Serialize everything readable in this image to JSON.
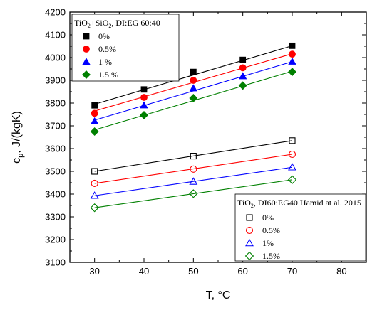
{
  "chart_data": {
    "type": "scatter",
    "xlabel": {
      "main": "T, ",
      "unit": "°C"
    },
    "ylabel": {
      "c": "c",
      "sub": "p",
      "rest": ", J/(kgK)"
    },
    "xlim": [
      25,
      85
    ],
    "ylim": [
      3100,
      4200
    ],
    "x_ticks": [
      "30",
      "40",
      "50",
      "60",
      "70",
      "80"
    ],
    "y_ticks": [
      "3100",
      "3200",
      "3300",
      "3400",
      "3500",
      "3600",
      "3700",
      "3800",
      "3900",
      "4000",
      "4100",
      "4200"
    ],
    "legends": [
      {
        "position": "top-left",
        "title": {
          "a": "TiO",
          "sub": "2",
          "b": "+SiO",
          "sub2": "2",
          "c": ", DI:EG 60:40"
        },
        "entries": [
          "0%",
          "0.5%",
          "1 %",
          "1.5 %"
        ]
      },
      {
        "position": "bottom-right",
        "title": {
          "a": "TiO",
          "sub": "2",
          "b": ", DI60:EG40 Hamid at al. 2015"
        },
        "entries": [
          "0%",
          "0.5%",
          "1%",
          "1.5%"
        ]
      }
    ],
    "series": [
      {
        "group": 0,
        "name": "0%",
        "marker": "square",
        "filled": true,
        "color": "#000000",
        "x": [
          30,
          40,
          50,
          60,
          70
        ],
        "y": [
          3790,
          3860,
          3937,
          3990,
          4052
        ],
        "fit": [
          [
            30,
            3795
          ],
          [
            70,
            4052
          ]
        ]
      },
      {
        "group": 0,
        "name": "0.5%",
        "marker": "circle",
        "filled": true,
        "color": "#ff0000",
        "x": [
          30,
          40,
          50,
          60,
          70
        ],
        "y": [
          3755,
          3825,
          3900,
          3955,
          4015
        ],
        "fit": [
          [
            30,
            3765
          ],
          [
            70,
            4017
          ]
        ]
      },
      {
        "group": 0,
        "name": "1 %",
        "marker": "triangle",
        "filled": true,
        "color": "#0000ff",
        "x": [
          30,
          40,
          50,
          60,
          70
        ],
        "y": [
          3720,
          3790,
          3865,
          3918,
          3982
        ],
        "fit": [
          [
            30,
            3725
          ],
          [
            70,
            3982
          ]
        ]
      },
      {
        "group": 0,
        "name": "1.5 %",
        "marker": "diamond",
        "filled": true,
        "color": "#008000",
        "x": [
          30,
          40,
          50,
          60,
          70
        ],
        "y": [
          3675,
          3747,
          3822,
          3877,
          3937
        ],
        "fit": [
          [
            30,
            3682
          ],
          [
            70,
            3940
          ]
        ]
      },
      {
        "group": 1,
        "name": "0%",
        "marker": "square",
        "filled": false,
        "color": "#000000",
        "x": [
          30,
          50,
          70
        ],
        "y": [
          3500,
          3567,
          3635
        ],
        "fit": [
          [
            30,
            3500
          ],
          [
            70,
            3635
          ]
        ]
      },
      {
        "group": 1,
        "name": "0.5%",
        "marker": "circle",
        "filled": false,
        "color": "#ff0000",
        "x": [
          30,
          50,
          70
        ],
        "y": [
          3447,
          3510,
          3575
        ],
        "fit": [
          [
            30,
            3447
          ],
          [
            70,
            3575
          ]
        ]
      },
      {
        "group": 1,
        "name": "1%",
        "marker": "triangle",
        "filled": false,
        "color": "#0000ff",
        "x": [
          30,
          50,
          70
        ],
        "y": [
          3393,
          3455,
          3518
        ],
        "fit": [
          [
            30,
            3393
          ],
          [
            70,
            3518
          ]
        ]
      },
      {
        "group": 1,
        "name": "1.5%",
        "marker": "diamond",
        "filled": false,
        "color": "#008000",
        "x": [
          30,
          50,
          70
        ],
        "y": [
          3340,
          3402,
          3463
        ],
        "fit": [
          [
            30,
            3340
          ],
          [
            70,
            3463
          ]
        ]
      }
    ]
  }
}
